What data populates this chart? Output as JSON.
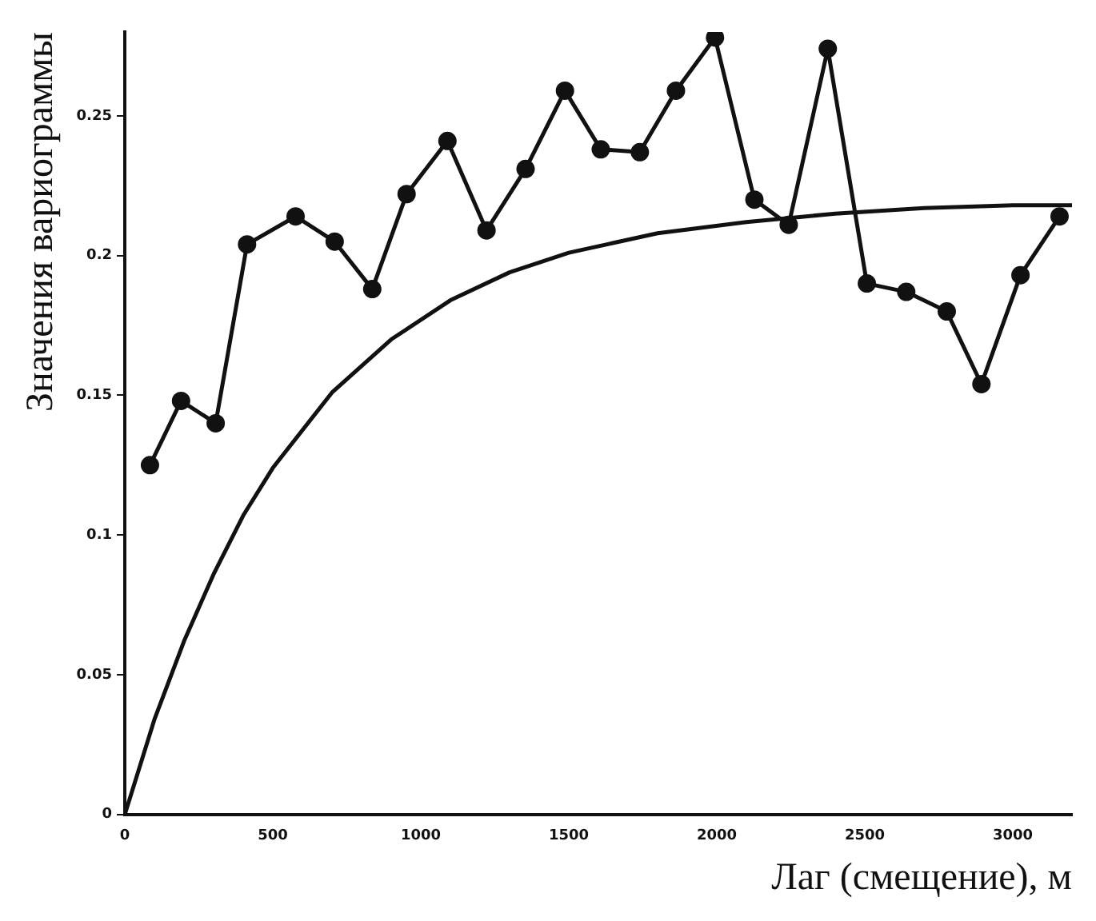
{
  "chart_data": {
    "type": "line",
    "xlabel": "Лаг (смещение), м",
    "ylabel": "Значения вариограммы",
    "xlim": [
      0,
      3200
    ],
    "xticks": [
      0,
      500,
      1000,
      1500,
      2000,
      2500,
      3000
    ],
    "ylim": [
      0,
      0.28
    ],
    "yticks": [
      0,
      0.05,
      0.1,
      0.15,
      0.2,
      0.25
    ],
    "grid": false,
    "legend": false,
    "series": [
      {
        "type": "line",
        "marker": "circle",
        "color": "#111111",
        "x": [
          85,
          190,
          307,
          413,
          577,
          709,
          836,
          952,
          1090,
          1222,
          1354,
          1487,
          1608,
          1740,
          1862,
          1994,
          2127,
          2243,
          2375,
          2507,
          2640,
          2777,
          2894,
          3026,
          3158
        ],
        "values": [
          0.125,
          0.148,
          0.14,
          0.204,
          0.214,
          0.205,
          0.188,
          0.222,
          0.241,
          0.209,
          0.231,
          0.259,
          0.238,
          0.237,
          0.259,
          0.278,
          0.22,
          0.211,
          0.274,
          0.19,
          0.187,
          0.18,
          0.154,
          0.193,
          0.214
        ]
      },
      {
        "type": "line",
        "marker": "none",
        "color": "#111111",
        "x": [
          0,
          100,
          200,
          300,
          400,
          500,
          700,
          900,
          1100,
          1300,
          1500,
          1800,
          2100,
          2400,
          2700,
          3000,
          3200
        ],
        "values": [
          0,
          0.034,
          0.062,
          0.086,
          0.107,
          0.124,
          0.151,
          0.17,
          0.184,
          0.194,
          0.201,
          0.208,
          0.212,
          0.215,
          0.217,
          0.218,
          0.218
        ]
      }
    ]
  }
}
